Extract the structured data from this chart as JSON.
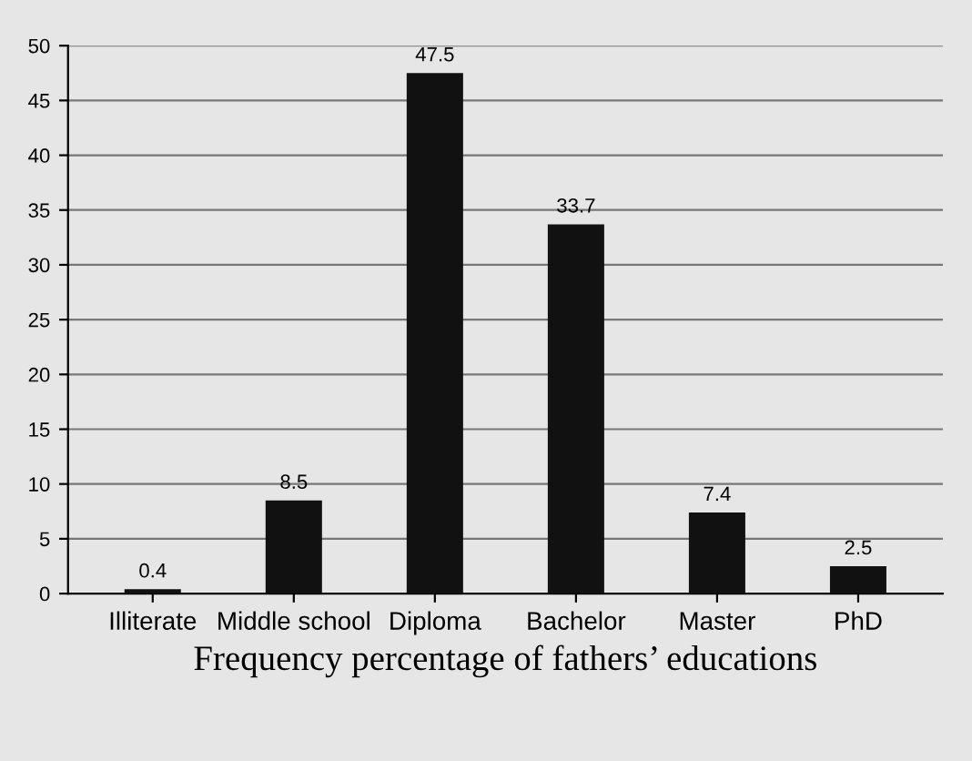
{
  "chart_data": {
    "type": "bar",
    "xlabel": "Frequency percentage of fathers’ educations",
    "categories": [
      "Illiterate",
      "Middle school",
      "Diploma",
      "Bachelor",
      "Master",
      "PhD"
    ],
    "values": [
      0.4,
      8.5,
      47.5,
      33.7,
      7.4,
      2.5
    ],
    "color": "#111111",
    "ylim": [
      0,
      50
    ],
    "yticks": [
      0,
      5,
      10,
      15,
      20,
      25,
      30,
      35,
      40,
      45,
      50
    ],
    "grid": "y",
    "data_labels": true
  }
}
